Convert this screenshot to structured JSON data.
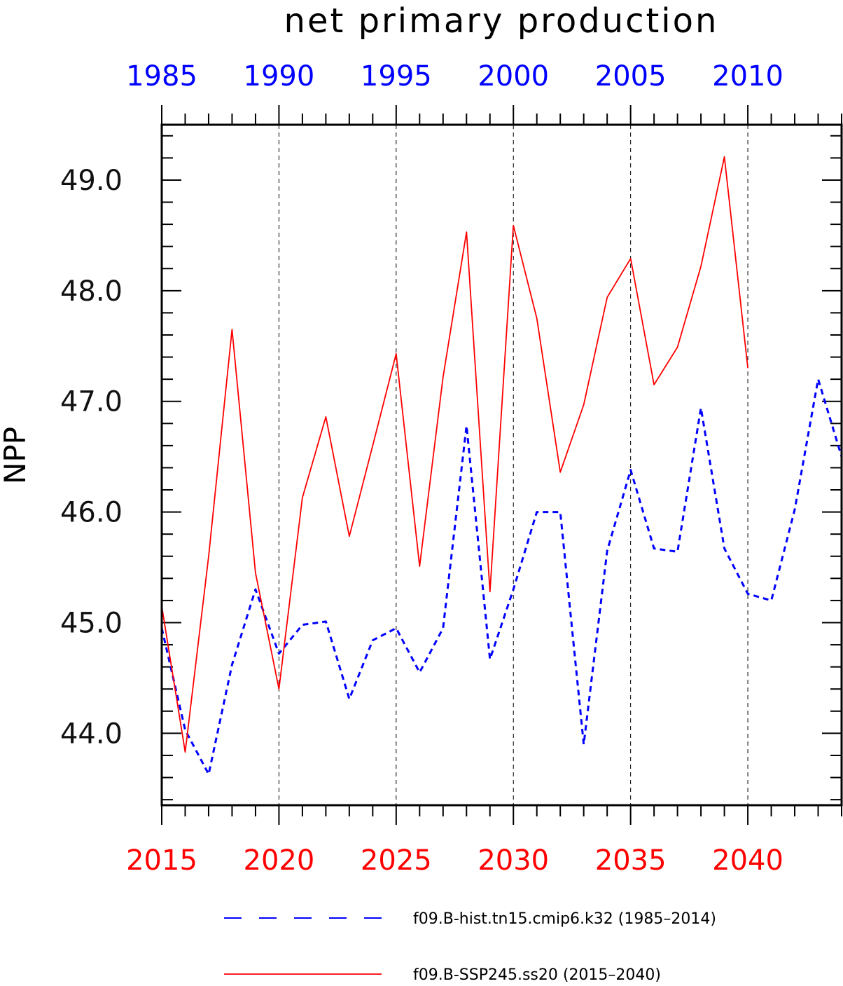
{
  "chart_data": {
    "type": "line",
    "title": "net primary production",
    "ylabel": "NPP",
    "ylim": [
      43.35,
      49.5
    ],
    "y_ticks": [
      44.0,
      45.0,
      46.0,
      47.0,
      48.0,
      49.0
    ],
    "y_tick_labels": [
      "44.0",
      "45.0",
      "46.0",
      "47.0",
      "48.0",
      "49.0"
    ],
    "x_bottom": {
      "range": [
        2015,
        2044
      ],
      "ticks": [
        2015,
        2020,
        2025,
        2030,
        2035,
        2040
      ],
      "tick_labels": [
        "2015",
        "2020",
        "2025",
        "2030",
        "2035",
        "2040"
      ],
      "color": "#ff0000"
    },
    "x_top": {
      "range": [
        1985,
        2014
      ],
      "ticks": [
        1985,
        1990,
        1995,
        2000,
        2005,
        2010
      ],
      "tick_labels": [
        "1985",
        "1990",
        "1995",
        "2000",
        "2005",
        "2010"
      ],
      "color": "#0000ff"
    },
    "grid": "vertical dashed at major ticks",
    "legend_position": "bottom",
    "series": [
      {
        "name": "f09.B-hist.tn15.cmip6.k32 (1985–2014)",
        "axis": "top",
        "style": "dashed",
        "color": "#0000ff",
        "x": [
          1985,
          1986,
          1987,
          1988,
          1989,
          1990,
          1991,
          1992,
          1993,
          1994,
          1995,
          1996,
          1997,
          1998,
          1999,
          2000,
          2001,
          2002,
          2003,
          2004,
          2005,
          2006,
          2007,
          2008,
          2009,
          2010,
          2011,
          2012,
          2013,
          2014
        ],
        "values": [
          44.95,
          44.03,
          43.63,
          44.62,
          45.3,
          44.72,
          44.98,
          45.01,
          44.31,
          44.84,
          44.95,
          44.55,
          44.95,
          46.78,
          44.67,
          45.3,
          46.0,
          46.0,
          43.9,
          45.65,
          46.38,
          45.67,
          45.64,
          46.94,
          45.67,
          45.26,
          45.2,
          46.02,
          47.2,
          46.5
        ]
      },
      {
        "name": "f09.B-SSP245.ss20 (2015–2040)",
        "axis": "bottom",
        "style": "solid",
        "color": "#ff0000",
        "x": [
          2015,
          2016,
          2017,
          2018,
          2019,
          2020,
          2021,
          2022,
          2023,
          2024,
          2025,
          2026,
          2027,
          2028,
          2029,
          2030,
          2031,
          2032,
          2033,
          2034,
          2035,
          2036,
          2037,
          2038,
          2039,
          2040
        ],
        "values": [
          45.15,
          43.83,
          45.6,
          47.65,
          45.45,
          44.4,
          46.13,
          46.86,
          45.78,
          46.6,
          47.43,
          45.51,
          47.22,
          48.53,
          45.28,
          48.59,
          47.75,
          46.36,
          46.97,
          47.94,
          48.29,
          47.15,
          47.49,
          48.22,
          49.21,
          47.3
        ]
      }
    ]
  }
}
